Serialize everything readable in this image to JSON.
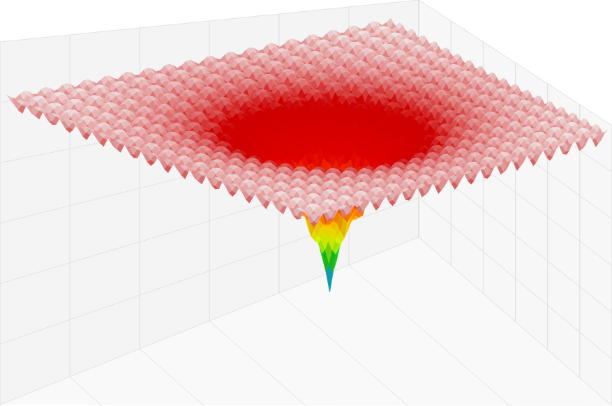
{
  "chart_data": {
    "type": "surface3d",
    "title": "",
    "xlabel": "",
    "ylabel": "",
    "zlabel": "",
    "surface": "ackley",
    "x_range": [
      -30,
      30
    ],
    "y_range": [
      -30,
      30
    ],
    "z_range": [
      0,
      22.3
    ],
    "global_minimum": {
      "x": 0,
      "y": 0,
      "z": 0
    },
    "colormap": [
      "#3a2fc0",
      "#1fb4e8",
      "#00c820",
      "#d8ff00",
      "#ffd000",
      "#ff6a00",
      "#e00000",
      "#cc0000",
      "#f2f2f2"
    ],
    "background_grid": true,
    "colorbar": false
  }
}
